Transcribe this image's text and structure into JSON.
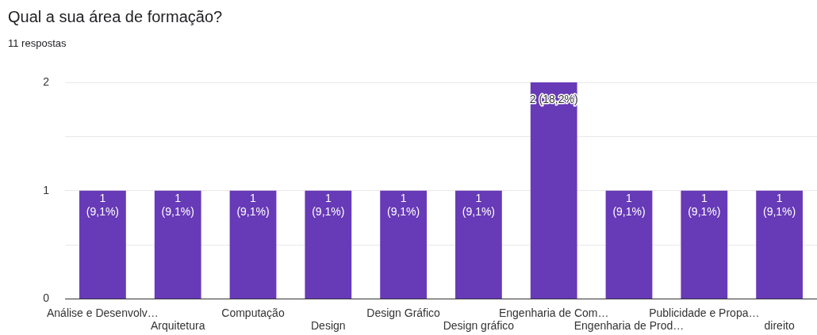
{
  "chart_data": {
    "type": "bar",
    "title": "Qual a sua área de formação?",
    "subtitle": "11 respostas",
    "categories": [
      "Análise e Desenvolv…",
      "Arquitetura",
      "Computação",
      "Design",
      "Design Gráfico",
      "Design gráfico",
      "Engenharia de Com…",
      "Engenharia de Prod…",
      "Publicidade e Propa…",
      "direito"
    ],
    "values": [
      1,
      1,
      1,
      1,
      1,
      1,
      2,
      1,
      1,
      1
    ],
    "value_labels": [
      "1 (9,1%)",
      "1 (9,1%)",
      "1 (9,1%)",
      "1 (9,1%)",
      "1 (9,1%)",
      "1 (9,1%)",
      "2 (18,2%)",
      "1 (9,1%)",
      "1 (9,1%)",
      "1 (9,1%)"
    ],
    "color": "#673ab7",
    "ylim": [
      0,
      2
    ],
    "yticks": [
      0,
      {
        "value": 0.5,
        "label": null
      },
      1,
      {
        "value": 1.5,
        "label": null
      },
      2
    ],
    "grid": "y",
    "legend": false
  }
}
